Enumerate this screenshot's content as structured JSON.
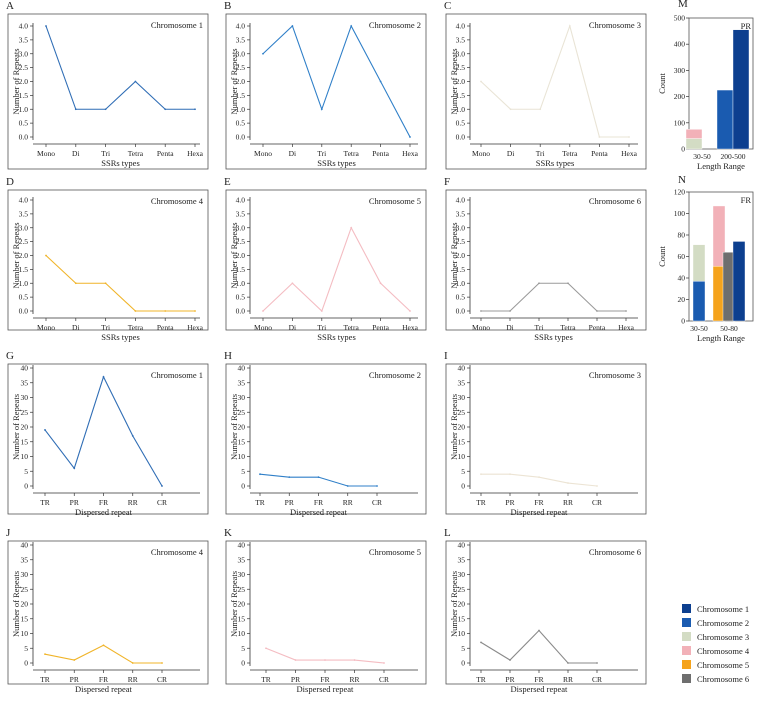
{
  "colors": {
    "chromosome_1": "#0d3f8f",
    "chromosome_2": "#1a5bb0",
    "chromosome_3": "#d3dcc4",
    "chromosome_4": "#f2b1b8",
    "chromosome_5": "#f5a31c",
    "chromosome_6": "#6e6e6e"
  },
  "legend": {
    "items": [
      {
        "label": "Chromosome 1",
        "color": "#0d3f8f"
      },
      {
        "label": "Chromosome 2",
        "color": "#1a5bb0"
      },
      {
        "label": "Chromosome 3",
        "color": "#d3dcc4"
      },
      {
        "label": "Chromosome 4",
        "color": "#f2b1b8"
      },
      {
        "label": "Chromosome 5",
        "color": "#f5a31c"
      },
      {
        "label": "Chromosome 6",
        "color": "#6e6e6e"
      }
    ]
  },
  "chart_data": [
    {
      "panel": "A",
      "type": "line",
      "title": "Chromosome 1",
      "xlabel": "SSRs types",
      "ylabel": "Number of Repeats",
      "categories": [
        "Mono",
        "Di",
        "Tri",
        "Tetra",
        "Penta",
        "Hexa"
      ],
      "yticks": [
        "0.0",
        "0.5",
        "1.0",
        "1.5",
        "2.0",
        "2.5",
        "3.0",
        "3.5",
        "4.0"
      ],
      "ylim": [
        0,
        4
      ],
      "color": "#2f6db5",
      "values": [
        4,
        1,
        1,
        2,
        1,
        1
      ]
    },
    {
      "panel": "B",
      "type": "line",
      "title": "Chromosome 2",
      "xlabel": "SSRs types",
      "ylabel": "Number of Repeats",
      "categories": [
        "Mono",
        "Di",
        "Tri",
        "Tetra",
        "Penta",
        "Hexa"
      ],
      "yticks": [
        "0.0",
        "0.5",
        "1.0",
        "1.5",
        "2.0",
        "2.5",
        "3.0",
        "3.5",
        "4.0"
      ],
      "ylim": [
        0,
        4
      ],
      "color": "#2f7fc8",
      "values": [
        3,
        4,
        1,
        4,
        2,
        0
      ]
    },
    {
      "panel": "C",
      "type": "line",
      "title": "Chromosome 3",
      "xlabel": "SSRs types",
      "ylabel": "Number of Repeats",
      "categories": [
        "Mono",
        "Di",
        "Tri",
        "Tetra",
        "Penta",
        "Hexa"
      ],
      "yticks": [
        "0.0",
        "0.5",
        "1.0",
        "1.5",
        "2.0",
        "2.5",
        "3.0",
        "3.5",
        "4.0"
      ],
      "ylim": [
        0,
        4
      ],
      "color": "#e9e4d6",
      "values": [
        2,
        1,
        1,
        4,
        0,
        0
      ]
    },
    {
      "panel": "D",
      "type": "line",
      "title": "Chromosome 4",
      "xlabel": "SSRs types",
      "ylabel": "Number of Repeats",
      "categories": [
        "Mono",
        "Di",
        "Tri",
        "Tetra",
        "Penta",
        "Hexa"
      ],
      "yticks": [
        "0.0",
        "0.5",
        "1.0",
        "1.5",
        "2.0",
        "2.5",
        "3.0",
        "3.5",
        "4.0"
      ],
      "ylim": [
        0,
        4
      ],
      "color": "#f0b429",
      "values": [
        2,
        1,
        1,
        0,
        0,
        0
      ]
    },
    {
      "panel": "E",
      "type": "line",
      "title": "Chromosome 5",
      "xlabel": "SSRs types",
      "ylabel": "Number of Repeats",
      "categories": [
        "Mono",
        "Di",
        "Tri",
        "Tetra",
        "Penta",
        "Hexa"
      ],
      "yticks": [
        "0.0",
        "0.5",
        "1.0",
        "1.5",
        "2.0",
        "2.5",
        "3.0",
        "3.5",
        "4.0"
      ],
      "ylim": [
        0,
        4
      ],
      "color": "#f4bcc2",
      "values": [
        0,
        1,
        0,
        3,
        1,
        0
      ]
    },
    {
      "panel": "F",
      "type": "line",
      "title": "Chromosome 6",
      "xlabel": "SSRs types",
      "ylabel": "Number of Repeats",
      "categories": [
        "Mono",
        "Di",
        "Tri",
        "Tetra",
        "Penta",
        "Hexa"
      ],
      "yticks": [
        "0.0",
        "0.5",
        "1.0",
        "1.5",
        "2.0",
        "2.5",
        "3.0",
        "3.5",
        "4.0"
      ],
      "ylim": [
        0,
        4
      ],
      "color": "#9a9a9a",
      "values": [
        0,
        0,
        1,
        1,
        0,
        0
      ]
    },
    {
      "panel": "G",
      "type": "line",
      "title": "Chromosome 1",
      "xlabel": "Dispersed repeat",
      "ylabel": "Number of Repeats",
      "categories": [
        "TR",
        "PR",
        "FR",
        "RR",
        "CR"
      ],
      "yticks": [
        "0",
        "5",
        "10",
        "15",
        "20",
        "25",
        "30",
        "35",
        "40"
      ],
      "ylim": [
        0,
        40
      ],
      "color": "#2f6db5",
      "values": [
        19,
        6,
        37,
        17,
        0
      ]
    },
    {
      "panel": "H",
      "type": "line",
      "title": "Chromosome 2",
      "xlabel": "Dispersed repeat",
      "ylabel": "Number of Repeats",
      "categories": [
        "TR",
        "PR",
        "FR",
        "RR",
        "CR"
      ],
      "yticks": [
        "0",
        "5",
        "10",
        "15",
        "20",
        "25",
        "30",
        "35",
        "40"
      ],
      "ylim": [
        0,
        40
      ],
      "color": "#2f7fc8",
      "values": [
        4,
        3,
        3,
        0,
        0
      ]
    },
    {
      "panel": "I",
      "type": "line",
      "title": "Chromosome 3",
      "xlabel": "Dispersed repeat",
      "ylabel": "Number of Repeats",
      "categories": [
        "TR",
        "PR",
        "FR",
        "RR",
        "CR"
      ],
      "yticks": [
        "0",
        "5",
        "10",
        "15",
        "20",
        "25",
        "30",
        "35",
        "40"
      ],
      "ylim": [
        0,
        40
      ],
      "color": "#ece4d4",
      "values": [
        4,
        4,
        3,
        1,
        0
      ]
    },
    {
      "panel": "J",
      "type": "line",
      "title": "Chromosome 4",
      "xlabel": "Dispersed repeat",
      "ylabel": "Number of Repeats",
      "categories": [
        "TR",
        "PR",
        "FR",
        "RR",
        "CR"
      ],
      "yticks": [
        "0",
        "5",
        "10",
        "15",
        "20",
        "25",
        "30",
        "35",
        "40"
      ],
      "ylim": [
        0,
        40
      ],
      "color": "#f0b429",
      "values": [
        3,
        1,
        6,
        0,
        0
      ]
    },
    {
      "panel": "K",
      "type": "line",
      "title": "Chromosome 5",
      "xlabel": "Dispersed repeat",
      "ylabel": "Number of Repeats",
      "categories": [
        "TR",
        "PR",
        "FR",
        "RR",
        "CR"
      ],
      "yticks": [
        "0",
        "5",
        "10",
        "15",
        "20",
        "25",
        "30",
        "35",
        "40"
      ],
      "ylim": [
        0,
        40
      ],
      "color": "#f4bcc2",
      "values": [
        5,
        1,
        1,
        1,
        0
      ]
    },
    {
      "panel": "L",
      "type": "line",
      "title": "Chromosome 6",
      "xlabel": "Dispersed repeat",
      "ylabel": "Number of Repeats",
      "categories": [
        "TR",
        "PR",
        "FR",
        "RR",
        "CR"
      ],
      "yticks": [
        "0",
        "5",
        "10",
        "15",
        "20",
        "25",
        "30",
        "35",
        "40"
      ],
      "ylim": [
        0,
        40
      ],
      "color": "#8a8a8a",
      "values": [
        7,
        1,
        11,
        0,
        0
      ]
    },
    {
      "panel": "M",
      "type": "bar",
      "title": "PR",
      "xlabel": "Length Range",
      "ylabel": "Count",
      "categories": [
        "30-50",
        "200-500"
      ],
      "yticks": [
        "0",
        "100",
        "200",
        "300",
        "400",
        "500"
      ],
      "ylim": [
        0,
        500
      ],
      "series": [
        {
          "name": "Chromosome 3",
          "color": "#d3dcc4",
          "category": "30-50",
          "offset": -1,
          "base": 0,
          "value": 40
        },
        {
          "name": "Chromosome 4",
          "color": "#f2b1b8",
          "category": "30-50",
          "offset": -1,
          "base": 40,
          "value": 35
        },
        {
          "name": "Chromosome 2",
          "color": "#1a5bb0",
          "category": "200-500",
          "offset": -1,
          "base": 0,
          "value": 225
        },
        {
          "name": "Chromosome 1",
          "color": "#0d3f8f",
          "category": "200-500",
          "offset": 1,
          "base": 0,
          "value": 455
        }
      ]
    },
    {
      "panel": "N",
      "type": "bar",
      "title": "FR",
      "xlabel": "Length Range",
      "ylabel": "Count",
      "categories": [
        "30-50",
        "50-80"
      ],
      "yticks": [
        "0",
        "20",
        "40",
        "60",
        "80",
        "100",
        "120"
      ],
      "ylim": [
        0,
        120
      ],
      "series": [
        {
          "name": "Chromosome 2",
          "color": "#1a5bb0",
          "category": "30-50",
          "offset": 0,
          "base": 0,
          "value": 37
        },
        {
          "name": "Chromosome 3",
          "color": "#d3dcc4",
          "category": "30-50",
          "offset": 0,
          "base": 37,
          "value": 34
        },
        {
          "name": "Chromosome 5",
          "color": "#f5a31c",
          "category": "50-80",
          "offset": -1,
          "base": 0,
          "value": 51
        },
        {
          "name": "Chromosome 4",
          "color": "#f2b1b8",
          "category": "50-80",
          "offset": -1,
          "base": 51,
          "value": 56
        },
        {
          "name": "Chromosome 6",
          "color": "#6e6e6e",
          "category": "50-80",
          "offset": 0,
          "base": 0,
          "value": 64
        },
        {
          "name": "Chromosome 1",
          "color": "#0d3f8f",
          "category": "50-80",
          "offset": 1,
          "base": 0,
          "value": 74
        }
      ]
    }
  ]
}
